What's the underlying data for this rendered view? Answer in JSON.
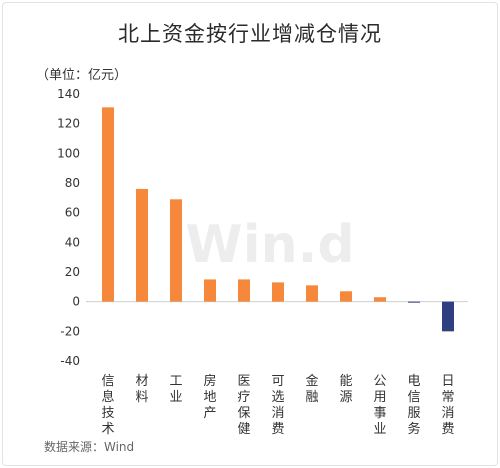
{
  "chart_data": {
    "type": "bar",
    "title": "北上资金按行业增减仓情况",
    "unit_label": "（单位：亿元）",
    "source": "数据来源：Wind",
    "watermark": "Win.d",
    "categories": [
      "信息技术",
      "材料",
      "工业",
      "房地产",
      "医疗保健",
      "可选消费",
      "金融",
      "能源",
      "公用事业",
      "电信服务",
      "日常消费"
    ],
    "values": [
      131,
      76,
      69,
      15,
      15,
      13,
      11,
      7,
      3,
      -0.5,
      -20
    ],
    "ylim": [
      -40,
      140
    ],
    "yticks": [
      "140",
      "120",
      "100",
      "80",
      "60",
      "40",
      "20",
      "0",
      "-20",
      "-40"
    ],
    "colors": {
      "positive": "#f5883a",
      "negative": "#2f3f7f"
    },
    "grid": false,
    "legend": "none"
  }
}
